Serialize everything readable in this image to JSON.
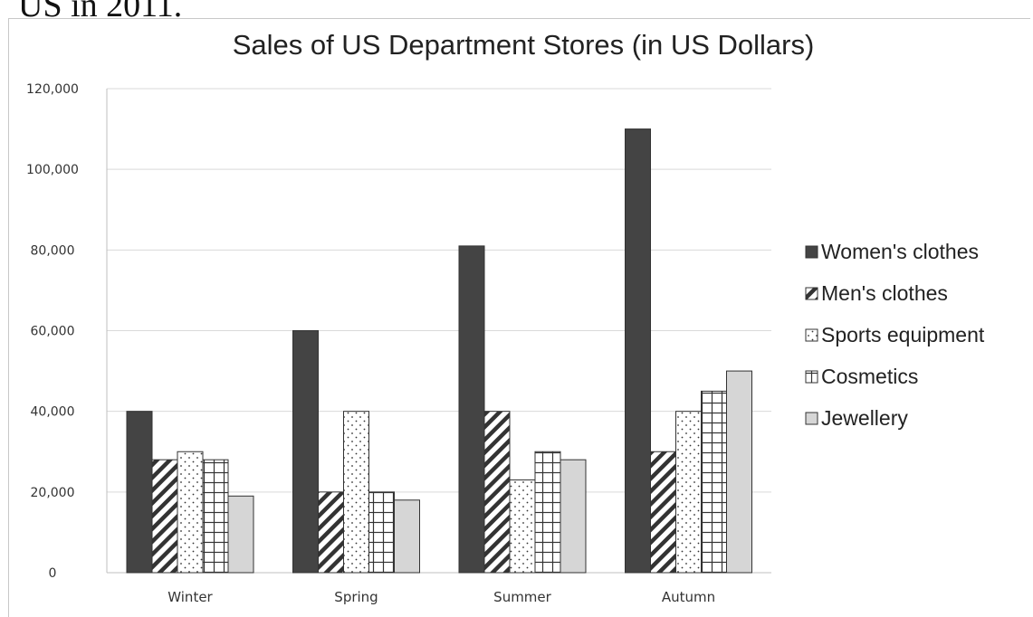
{
  "page_header": "US in 2011.",
  "chart_data": {
    "type": "bar",
    "title": "Sales of US Department Stores (in US Dollars)",
    "xlabel": "",
    "ylabel": "",
    "ylim": [
      0,
      120000
    ],
    "yticks": [
      "0",
      "20,000",
      "40,000",
      "60,000",
      "80,000",
      "100,000",
      "120,000"
    ],
    "ytick_values": [
      0,
      20000,
      40000,
      60000,
      80000,
      100000,
      120000
    ],
    "grid": true,
    "legend_position": "right",
    "categories": [
      "Winter",
      "Spring",
      "Summer",
      "Autumn"
    ],
    "series": [
      {
        "name": "Women's clothes",
        "values": [
          40000,
          60000,
          81000,
          110000
        ],
        "pattern": "solid",
        "color": "#444444"
      },
      {
        "name": "Men's clothes",
        "values": [
          28000,
          20000,
          40000,
          30000
        ],
        "pattern": "diagonal",
        "color": "#ffffff"
      },
      {
        "name": "Sports equipment",
        "values": [
          30000,
          40000,
          23000,
          40000
        ],
        "pattern": "dots",
        "color": "#ffffff"
      },
      {
        "name": "Cosmetics",
        "values": [
          28000,
          20000,
          30000,
          45000
        ],
        "pattern": "grid",
        "color": "#ffffff"
      },
      {
        "name": "Jewellery",
        "values": [
          19000,
          18000,
          28000,
          50000
        ],
        "pattern": "solid",
        "color": "#d6d6d6"
      }
    ]
  }
}
